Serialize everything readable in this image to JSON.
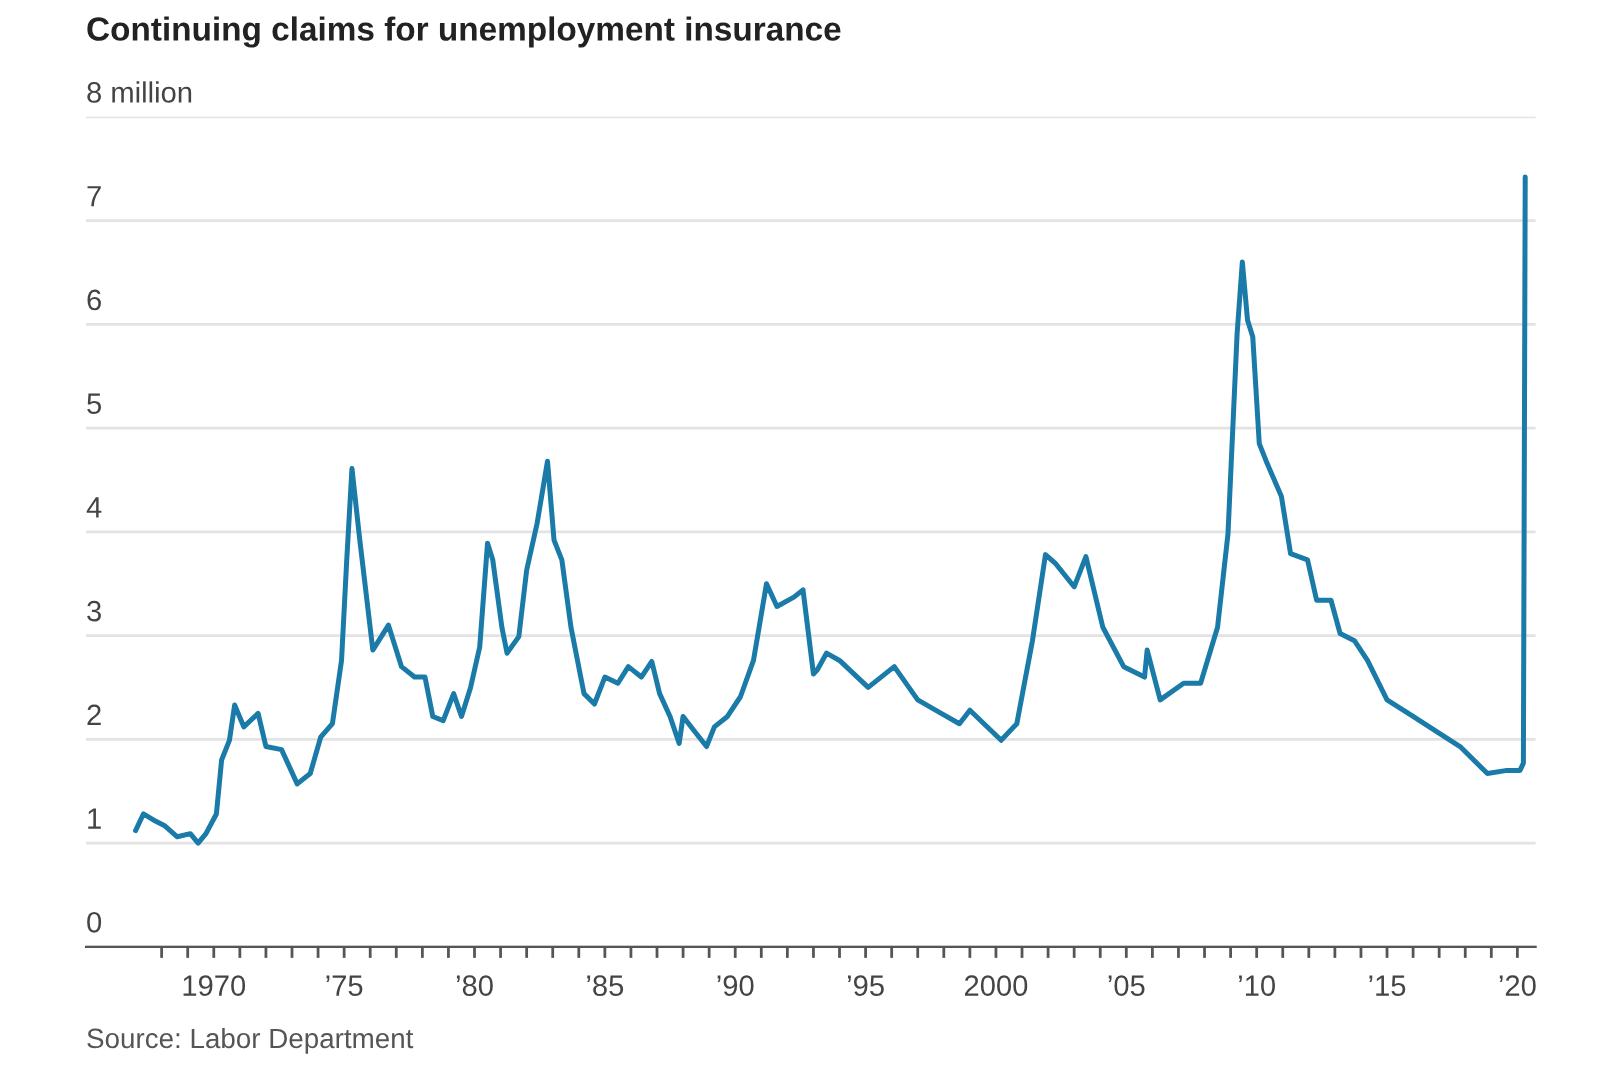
{
  "chart_data": {
    "type": "line",
    "title": "Continuing claims for unemployment insurance",
    "annotations": [
      "Source: Labor Department"
    ],
    "x": [
      1967.0,
      1967.3,
      1967.7,
      1968.1,
      1968.6,
      1969.1,
      1969.4,
      1969.7,
      1970.1,
      1970.3,
      1970.6,
      1970.8,
      1971.15,
      1971.7,
      1972.0,
      1972.6,
      1973.2,
      1973.7,
      1974.1,
      1974.55,
      1974.9,
      1975.1,
      1975.3,
      1975.6,
      1976.1,
      1976.7,
      1977.2,
      1977.7,
      1978.1,
      1978.4,
      1978.8,
      1979.2,
      1979.5,
      1979.85,
      1980.2,
      1980.5,
      1980.7,
      1981.05,
      1981.25,
      1981.7,
      1982.0,
      1982.4,
      1982.8,
      1983.05,
      1983.35,
      1983.7,
      1984.2,
      1984.6,
      1985.0,
      1985.5,
      1985.9,
      1986.4,
      1986.8,
      1987.1,
      1987.5,
      1987.85,
      1988.0,
      1988.4,
      1988.9,
      1989.2,
      1989.7,
      1990.2,
      1990.7,
      1991.2,
      1991.6,
      1992.25,
      1992.6,
      1993.0,
      1993.15,
      1993.5,
      1994.0,
      1995.1,
      1996.1,
      1997.0,
      1997.9,
      1998.6,
      1999.0,
      2000.2,
      2000.8,
      2001.4,
      2001.9,
      2002.3,
      2003.0,
      2003.45,
      2004.1,
      2004.9,
      2005.7,
      2005.8,
      2006.3,
      2007.2,
      2007.85,
      2008.5,
      2008.9,
      2009.25,
      2009.45,
      2009.65,
      2009.85,
      2010.1,
      2010.4,
      2010.95,
      2011.3,
      2011.95,
      2012.3,
      2012.85,
      2013.2,
      2013.75,
      2014.25,
      2015.0,
      2016.0,
      2016.8,
      2017.8,
      2018.85,
      2019.6,
      2020.1,
      2020.23,
      2020.3
    ],
    "series": [
      {
        "color": "#1a7aa8",
        "values": [
          1.12,
          1.28,
          1.22,
          1.17,
          1.06,
          1.09,
          1.0,
          1.09,
          1.28,
          1.8,
          1.99,
          2.33,
          2.12,
          2.25,
          1.93,
          1.9,
          1.57,
          1.67,
          2.02,
          2.15,
          2.76,
          3.73,
          4.61,
          3.92,
          2.86,
          3.1,
          2.7,
          2.6,
          2.6,
          2.22,
          2.18,
          2.44,
          2.22,
          2.5,
          2.89,
          3.89,
          3.73,
          3.08,
          2.83,
          2.99,
          3.63,
          4.08,
          4.68,
          3.92,
          3.73,
          3.08,
          2.44,
          2.34,
          2.6,
          2.54,
          2.7,
          2.6,
          2.75,
          2.44,
          2.22,
          1.96,
          2.22,
          2.09,
          1.93,
          2.12,
          2.22,
          2.41,
          2.76,
          3.5,
          3.28,
          3.37,
          3.44,
          2.63,
          2.67,
          2.83,
          2.76,
          2.5,
          2.7,
          2.38,
          2.25,
          2.15,
          2.28,
          1.99,
          2.15,
          2.95,
          3.78,
          3.69,
          3.47,
          3.76,
          3.08,
          2.7,
          2.6,
          2.86,
          2.38,
          2.54,
          2.54,
          3.08,
          3.98,
          5.91,
          6.6,
          6.04,
          5.88,
          4.85,
          4.66,
          4.34,
          3.79,
          3.73,
          3.34,
          3.34,
          3.02,
          2.95,
          2.76,
          2.38,
          2.22,
          2.09,
          1.93,
          1.67,
          1.7,
          1.7,
          1.77,
          7.42
        ]
      }
    ],
    "xlim": [
      1965.1,
      2020.7
    ],
    "xticks": [
      {
        "value": 1968,
        "label": null
      },
      {
        "value": 1969,
        "label": null
      },
      {
        "value": 1970,
        "label": "1970"
      },
      {
        "value": 1971,
        "label": null
      },
      {
        "value": 1972,
        "label": null
      },
      {
        "value": 1973,
        "label": null
      },
      {
        "value": 1974,
        "label": null
      },
      {
        "value": 1975,
        "label": "’75"
      },
      {
        "value": 1976,
        "label": null
      },
      {
        "value": 1977,
        "label": null
      },
      {
        "value": 1978,
        "label": null
      },
      {
        "value": 1979,
        "label": null
      },
      {
        "value": 1980,
        "label": "’80"
      },
      {
        "value": 1981,
        "label": null
      },
      {
        "value": 1982,
        "label": null
      },
      {
        "value": 1983,
        "label": null
      },
      {
        "value": 1984,
        "label": null
      },
      {
        "value": 1985,
        "label": "’85"
      },
      {
        "value": 1986,
        "label": null
      },
      {
        "value": 1987,
        "label": null
      },
      {
        "value": 1988,
        "label": null
      },
      {
        "value": 1989,
        "label": null
      },
      {
        "value": 1990,
        "label": "’90"
      },
      {
        "value": 1991,
        "label": null
      },
      {
        "value": 1992,
        "label": null
      },
      {
        "value": 1993,
        "label": null
      },
      {
        "value": 1994,
        "label": null
      },
      {
        "value": 1995,
        "label": "’95"
      },
      {
        "value": 1996,
        "label": null
      },
      {
        "value": 1997,
        "label": null
      },
      {
        "value": 1998,
        "label": null
      },
      {
        "value": 1999,
        "label": null
      },
      {
        "value": 2000,
        "label": "2000"
      },
      {
        "value": 2001,
        "label": null
      },
      {
        "value": 2002,
        "label": null
      },
      {
        "value": 2003,
        "label": null
      },
      {
        "value": 2004,
        "label": null
      },
      {
        "value": 2005,
        "label": "’05"
      },
      {
        "value": 2006,
        "label": null
      },
      {
        "value": 2007,
        "label": null
      },
      {
        "value": 2008,
        "label": null
      },
      {
        "value": 2009,
        "label": null
      },
      {
        "value": 2010,
        "label": "’10"
      },
      {
        "value": 2011,
        "label": null
      },
      {
        "value": 2012,
        "label": null
      },
      {
        "value": 2013,
        "label": null
      },
      {
        "value": 2014,
        "label": null
      },
      {
        "value": 2015,
        "label": "’15"
      },
      {
        "value": 2016,
        "label": null
      },
      {
        "value": 2017,
        "label": null
      },
      {
        "value": 2018,
        "label": null
      },
      {
        "value": 2019,
        "label": null
      },
      {
        "value": 2020,
        "label": "’20"
      }
    ],
    "ylim": [
      0,
      8
    ],
    "yticks": [
      0,
      1,
      2,
      3,
      4,
      5,
      6,
      7,
      {
        "value": 8,
        "label": "8 million"
      }
    ],
    "grid": "y"
  }
}
